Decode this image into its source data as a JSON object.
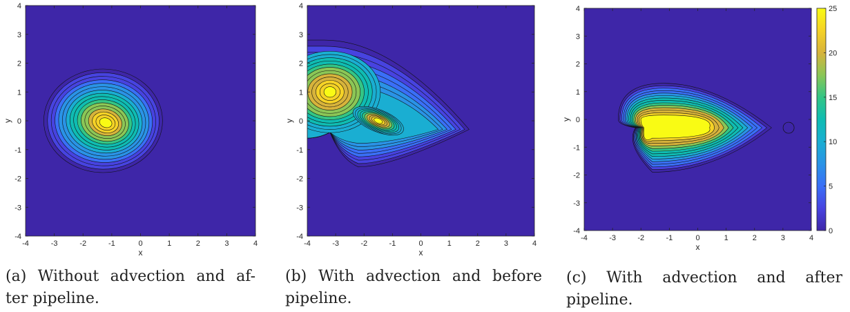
{
  "colormap": [
    "#3e26a8",
    "#4743e0",
    "#3a6ff7",
    "#2a93e6",
    "#1aaed2",
    "#0fbcb2",
    "#33c585",
    "#8bc656",
    "#d7b33b",
    "#f5d226",
    "#f9fb14"
  ],
  "chart_data": [
    {
      "type": "contour",
      "xlabel": "x",
      "ylabel": "y",
      "xlim": [
        -4,
        4
      ],
      "ylim": [
        -4,
        4
      ],
      "xticks": [
        "-4",
        "-3",
        "-2",
        "-1",
        "0",
        "1",
        "2",
        "3",
        "4"
      ],
      "yticks": [
        "-4",
        "-3",
        "-2",
        "-1",
        "0",
        "1",
        "2",
        "3",
        "4"
      ],
      "peaks": [
        {
          "x": -1.3,
          "y": 0.0,
          "value": 25,
          "shape": "elliptical blob centred near (-1.3, 0)"
        }
      ],
      "caption_label": "(a)",
      "caption_lines": [
        "Without advection and af-",
        "ter pipeline."
      ]
    },
    {
      "type": "contour",
      "xlabel": "x",
      "ylabel": "y",
      "xlim": [
        -4,
        4
      ],
      "ylim": [
        -4,
        4
      ],
      "xticks": [
        "-4",
        "-3",
        "-2",
        "-1",
        "0",
        "1",
        "2",
        "3",
        "4"
      ],
      "yticks": [
        "-4",
        "-3",
        "-2",
        "-1",
        "0",
        "1",
        "2",
        "3",
        "4"
      ],
      "peaks": [
        {
          "x": -3.2,
          "y": 1.0,
          "value": 25
        },
        {
          "x": -1.5,
          "y": 0.0,
          "value": 20
        }
      ],
      "plume_tip": {
        "x": 1.7,
        "y": -0.3
      },
      "caption_label": "(b)",
      "caption_lines": [
        "With advection and before",
        "pipeline."
      ]
    },
    {
      "type": "contour",
      "xlabel": "x",
      "ylabel": "y",
      "xlim": [
        -4,
        4
      ],
      "ylim": [
        -4,
        4
      ],
      "xticks": [
        "-4",
        "-3",
        "-2",
        "-1",
        "0",
        "1",
        "2",
        "3",
        "4"
      ],
      "yticks": [
        "-4",
        "-3",
        "-2",
        "-1",
        "0",
        "1",
        "2",
        "3",
        "4"
      ],
      "peaks": [
        {
          "x": -1.0,
          "y": -0.25,
          "value": 25
        }
      ],
      "plume_tip": {
        "x": 2.6,
        "y": -0.3
      },
      "small_circle": {
        "x": 3.2,
        "y": -0.3
      },
      "colorbar": {
        "min": 0,
        "max": 25,
        "ticks": [
          "0",
          "5",
          "10",
          "15",
          "20",
          "25"
        ]
      },
      "caption_label": "(c)",
      "caption_lines": [
        "With advection and after",
        "pipeline."
      ]
    }
  ]
}
